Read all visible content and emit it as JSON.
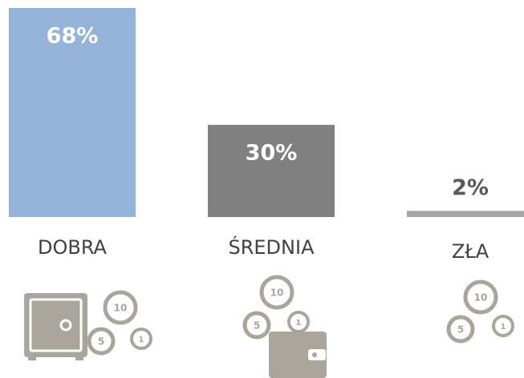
{
  "chart_data": {
    "type": "bar",
    "categories": [
      "DOBRA",
      "ŚREDNIA",
      "ZŁA"
    ],
    "values": [
      68,
      30,
      2
    ],
    "value_labels": [
      "68%",
      "30%",
      "2%"
    ],
    "colors": [
      "#95b3d7",
      "#808080",
      "#a6a6a6"
    ]
  }
}
